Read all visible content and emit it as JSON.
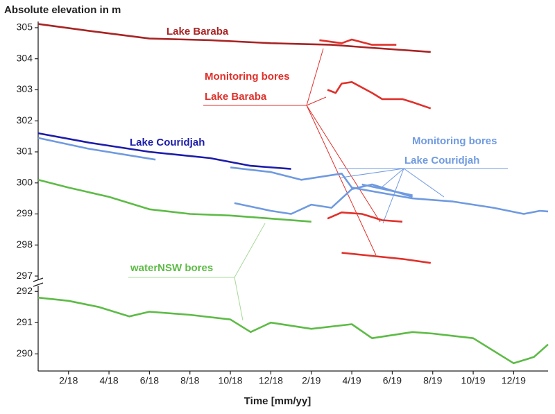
{
  "chart_data": [
    {
      "type": "line",
      "title": "Absolute elevation in m",
      "xlim": [
        0.5,
        25.7
      ],
      "ylim": [
        296.8,
        305.2
      ],
      "yticks": [
        297,
        298,
        299,
        300,
        301,
        302,
        303,
        304,
        305
      ],
      "series": [
        {
          "name": "Lake Baraba",
          "color": "#a82424",
          "x": [
            0.5,
            3,
            6,
            9,
            12,
            15,
            17,
            19.9
          ],
          "values": [
            305.12,
            304.9,
            304.65,
            304.6,
            304.5,
            304.45,
            304.35,
            304.22
          ]
        },
        {
          "color": "#e0302a",
          "x": [
            14.4,
            15.5,
            16,
            17,
            18.2
          ],
          "values": [
            304.6,
            304.5,
            304.62,
            304.45,
            304.45
          ]
        },
        {
          "color": "#e0302a",
          "x": [
            14.8,
            15.2,
            15.5,
            16,
            17,
            17.5,
            18.5,
            19,
            19.9
          ],
          "values": [
            303,
            302.9,
            303.2,
            303.25,
            302.9,
            302.7,
            302.7,
            302.6,
            302.4
          ]
        },
        {
          "color": "#e0302a",
          "x": [
            14.8,
            15.5,
            16.5,
            17.5,
            18.5
          ],
          "values": [
            298.85,
            299.05,
            299,
            298.8,
            298.75
          ]
        },
        {
          "color": "#e0302a",
          "x": [
            15.5,
            17,
            18.5,
            19.9
          ],
          "values": [
            297.75,
            297.65,
            297.55,
            297.42
          ]
        },
        {
          "name": "Lake Couridjah",
          "color": "#1c1caa",
          "x": [
            0.5,
            3,
            6,
            9,
            11,
            13
          ],
          "values": [
            301.6,
            301.3,
            301,
            300.8,
            300.55,
            300.45
          ]
        },
        {
          "color": "#6f9ae0",
          "x": [
            0.5,
            3,
            6.3
          ],
          "values": [
            301.45,
            301.1,
            300.75
          ]
        },
        {
          "color": "#6f9ae0",
          "x": [
            10,
            12,
            13.5,
            15.5,
            16,
            19,
            21,
            23,
            24.5,
            25.3,
            25.7
          ],
          "values": [
            300.5,
            300.35,
            300.1,
            300.3,
            299.85,
            299.5,
            299.4,
            299.2,
            299,
            299.1,
            299.08
          ]
        },
        {
          "color": "#6f9ae0",
          "x": [
            10.2,
            12,
            13,
            14,
            15,
            16,
            17,
            18,
            19
          ],
          "values": [
            299.35,
            299.1,
            299,
            299.3,
            299.2,
            299.8,
            299.95,
            299.75,
            299.55
          ]
        },
        {
          "color": "#6f9ae0",
          "x": [
            16.5,
            19
          ],
          "values": [
            299.95,
            299.6
          ]
        },
        {
          "color": "#5dbb46",
          "x": [
            0.5,
            2,
            4,
            6,
            8,
            10,
            12,
            14
          ],
          "values": [
            300.1,
            299.85,
            299.55,
            299.15,
            299,
            298.95,
            298.85,
            298.75
          ]
        }
      ],
      "annotations": [
        "Monitoring bores",
        "Lake Baraba",
        "Monitoring bores",
        "Lake Couridjah",
        "waterNSW bores"
      ]
    },
    {
      "type": "line",
      "xlabel": "Time [mm/yy]",
      "xlim": [
        0.5,
        25.7
      ],
      "ylim": [
        289.45,
        292.25
      ],
      "xticks": [
        {
          "value": 2,
          "label": "2/18"
        },
        {
          "value": 4,
          "label": "4/18"
        },
        {
          "value": 6,
          "label": "6/18"
        },
        {
          "value": 8,
          "label": "8/18"
        },
        {
          "value": 10,
          "label": "10/18"
        },
        {
          "value": 12,
          "label": "12/18"
        },
        {
          "value": 14,
          "label": "2/19"
        },
        {
          "value": 16,
          "label": "4/19"
        },
        {
          "value": 18,
          "label": "6/19"
        },
        {
          "value": 20,
          "label": "8/19"
        },
        {
          "value": 22,
          "label": "10/19"
        },
        {
          "value": 24,
          "label": "12/19"
        }
      ],
      "yticks": [
        290,
        291,
        292
      ],
      "series": [
        {
          "color": "#5dbb46",
          "x": [
            0.5,
            2,
            3.5,
            5,
            6,
            8,
            10,
            11,
            12,
            14,
            16,
            17,
            19,
            20,
            22,
            23.5,
            24,
            25,
            25.7
          ],
          "values": [
            291.8,
            291.7,
            291.5,
            291.2,
            291.35,
            291.25,
            291.1,
            290.7,
            291,
            290.8,
            290.95,
            290.5,
            290.7,
            290.65,
            290.5,
            289.9,
            289.7,
            289.9,
            290.3
          ]
        }
      ]
    }
  ]
}
